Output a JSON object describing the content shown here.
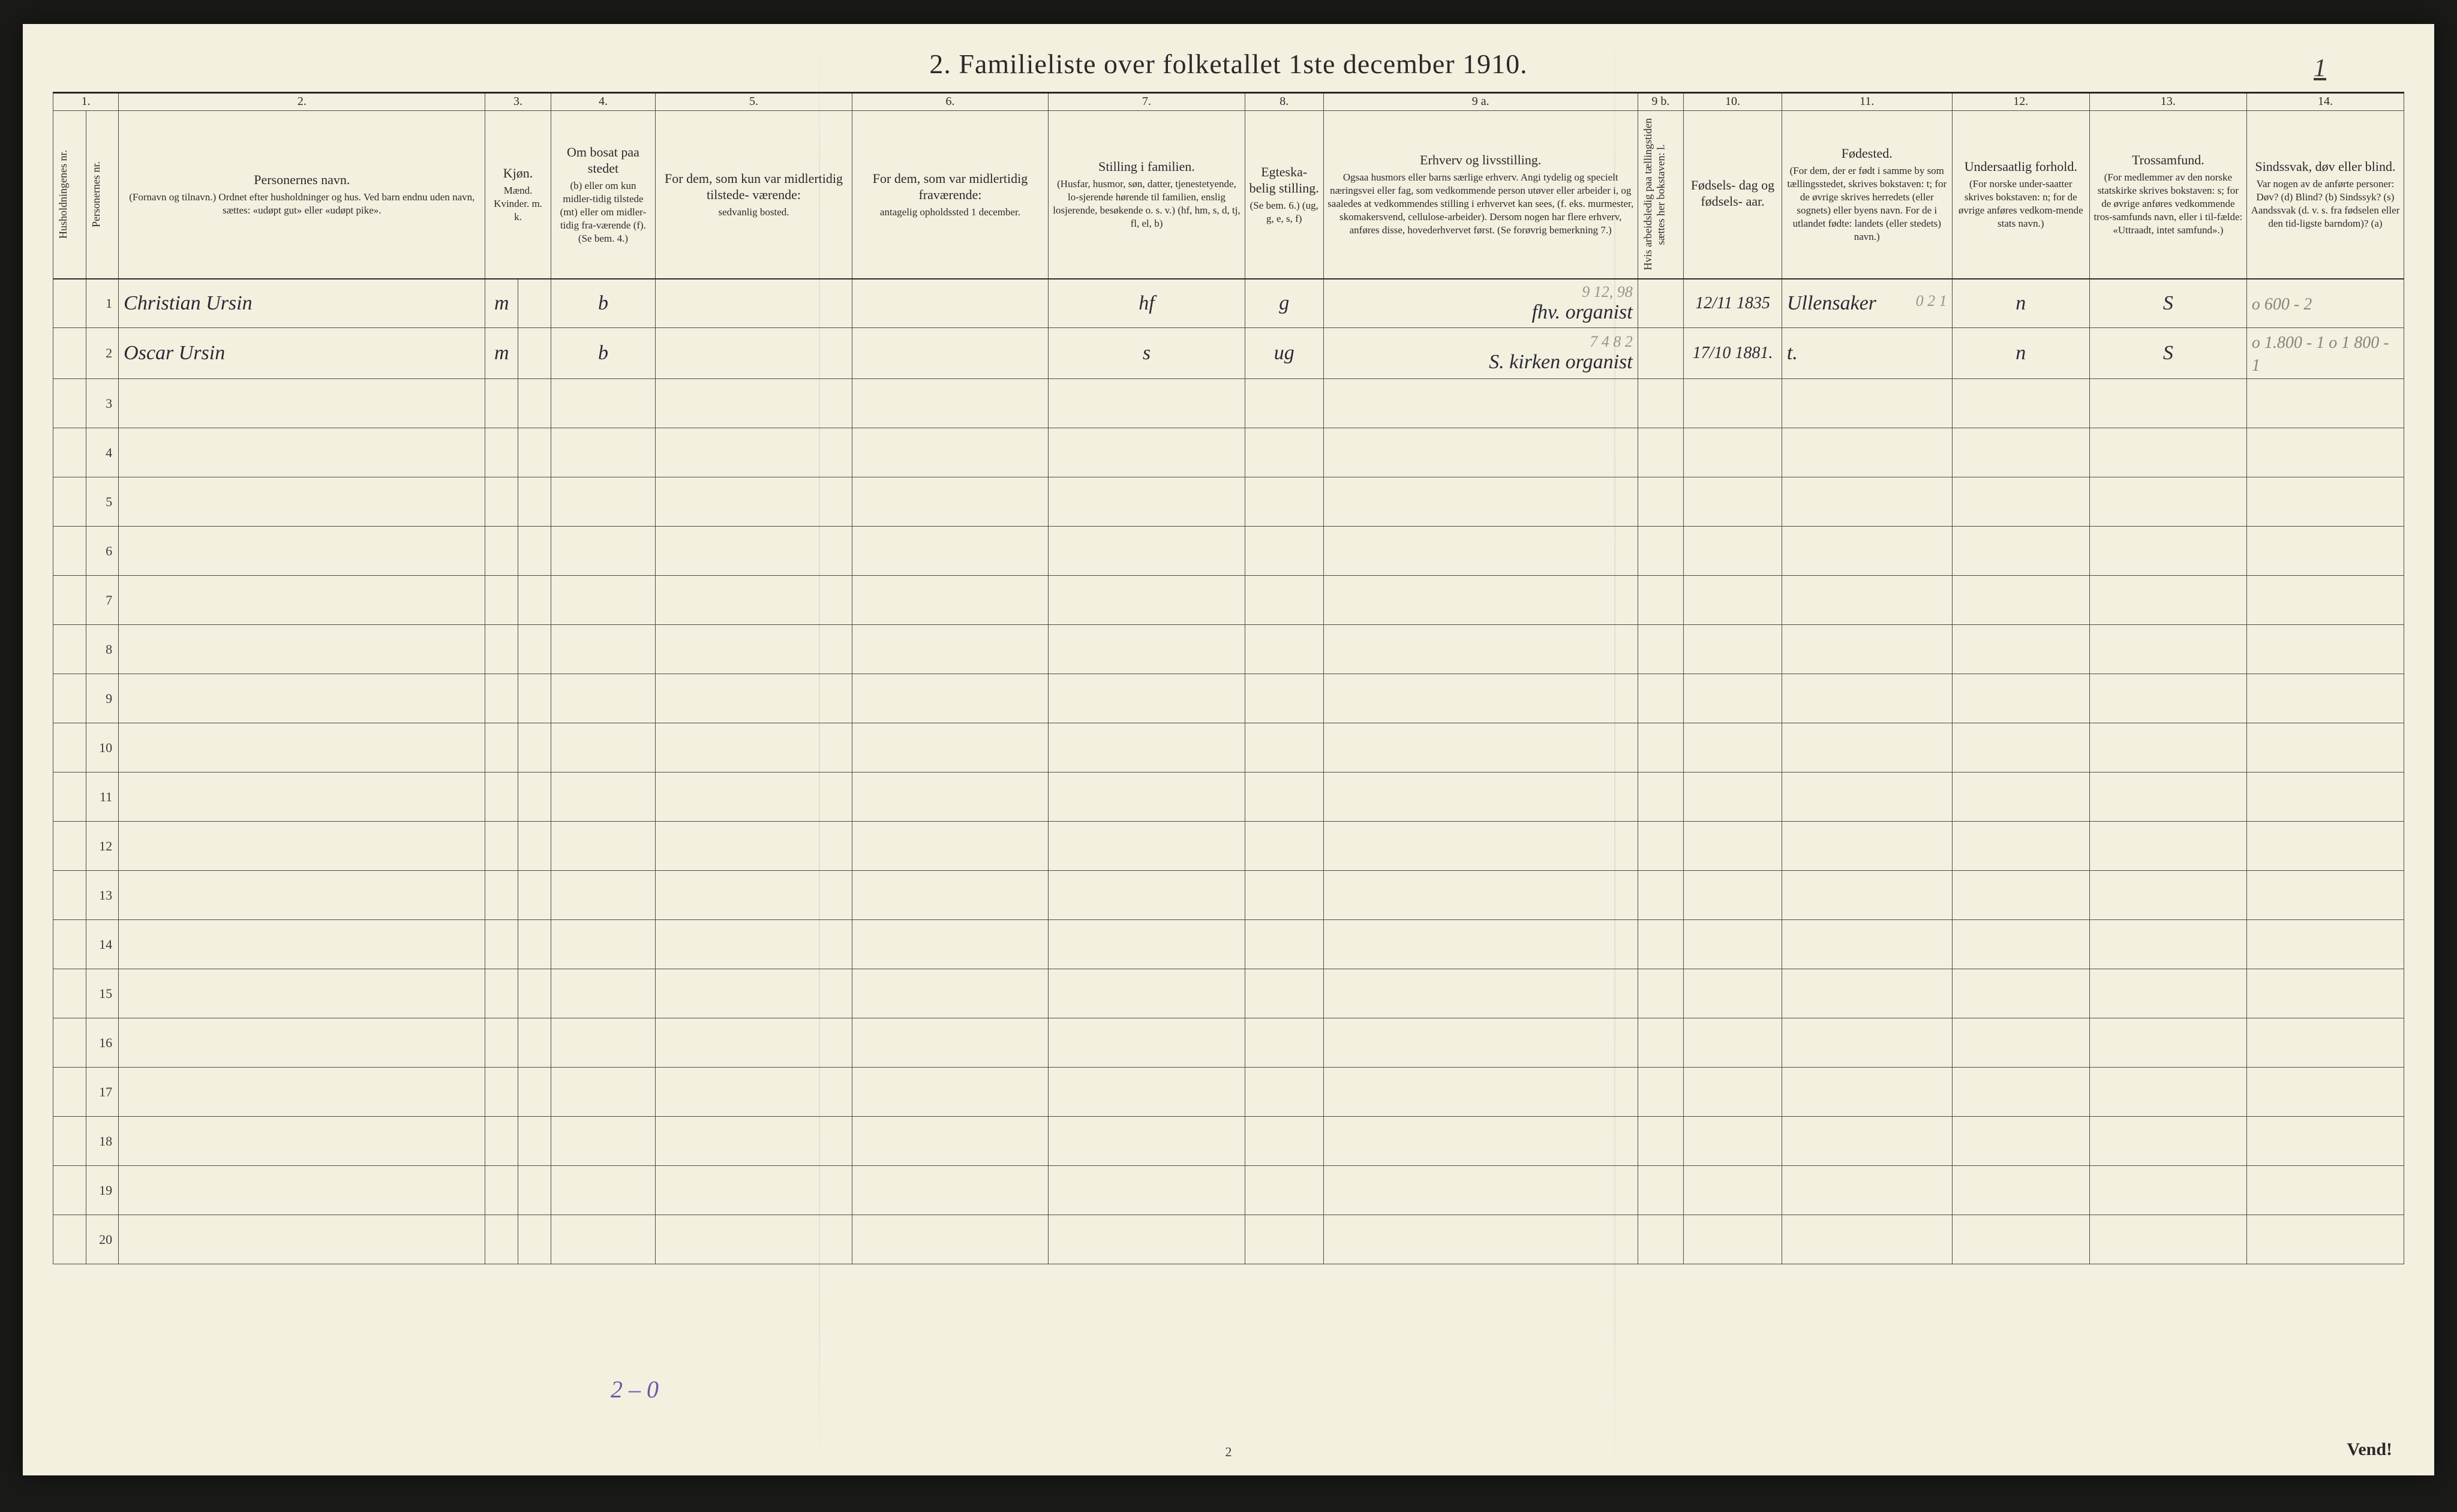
{
  "page": {
    "title": "2.  Familieliste over folketallet 1ste december 1910.",
    "sheet_number": "1",
    "bottom_page": "2",
    "footer": "Vend!",
    "pencil_bottom_left": "2 – 0"
  },
  "col_numbers": [
    "1.",
    "2.",
    "3.",
    "4.",
    "5.",
    "6.",
    "7.",
    "8.",
    "9 a.",
    "9 b.",
    "10.",
    "11.",
    "12.",
    "13.",
    "14."
  ],
  "headers": {
    "c1a_vert": "Husholdningenes nr.",
    "c1b_vert": "Personernes nr.",
    "c2_title": "Personernes navn.",
    "c2_sub": "(Fornavn og tilnavn.)\nOrdnet efter husholdninger og hus.\nVed barn endnu uden navn, sættes: «udøpt gut»\neller «udøpt pike».",
    "c3_title": "Kjøn.",
    "c3_sub": "Mænd.  Kvinder.\nm.   k.",
    "c4_title": "Om bosat paa stedet",
    "c4_sub": "(b) eller om kun midler-tidig tilstede (mt) eller om midler-tidig fra-værende (f).\n(Se bem. 4.)",
    "c5_title": "For dem, som kun var\nmidlertidig tilstede-\nværende:",
    "c5_sub": "sedvanlig bosted.",
    "c6_title": "For dem, som var\nmidlertidig\nfraværende:",
    "c6_sub": "antagelig opholdssted\n1 december.",
    "c7_title": "Stilling i familien.",
    "c7_sub": "(Husfar, husmor, søn, datter, tjenestetyende, lo-sjerende hørende til familien, enslig losjerende, besøkende o. s. v.)\n(hf, hm, s, d, tj, fl, el, b)",
    "c8_title": "Egteska-belig\nstilling.",
    "c8_sub": "(Se bem. 6.)\n(ug, g, e, s, f)",
    "c9a_title": "Erhverv og livsstilling.",
    "c9a_sub": "Ogsaa husmors eller barns særlige erhverv.\nAngi tydelig og specielt næringsvei eller fag, som vedkommende person utøver eller arbeider i, og saaledes at vedkommendes stilling i erhvervet kan sees, (f. eks. murmester, skomakersvend, cellulose-arbeider). Dersom nogen har flere erhverv, anføres disse, hovederhvervet først.\n(Se forøvrig bemerkning 7.)",
    "c9b_vert": "Hvis arbeidsledig paa tællingstiden sættes her bokstaven: l.",
    "c10_title": "Fødsels-\ndag\nog\nfødsels-\naar.",
    "c11_title": "Fødested.",
    "c11_sub": "(For dem, der er født i samme by som tællingsstedet, skrives bokstaven: t; for de øvrige skrives herredets (eller sognets) eller byens navn. For de i utlandet fødte: landets (eller stedets) navn.)",
    "c12_title": "Undersaatlig\nforhold.",
    "c12_sub": "(For norske under-saatter skrives bokstaven: n; for de øvrige anføres vedkom-mende stats navn.)",
    "c13_title": "Trossamfund.",
    "c13_sub": "(For medlemmer av den norske statskirke skrives bokstaven: s; for de øvrige anføres vedkommende tros-samfunds navn, eller i til-fælde: «Uttraadt, intet samfund».)",
    "c14_title": "Sindssvak, døv\neller blind.",
    "c14_sub": "Var nogen av de anførte personer:\nDøv?   (d)\nBlind?  (b)\nSindssyk? (s)\nAandssvak (d. v. s. fra fødselen eller den tid-ligste barndom)? (a)"
  },
  "rows": [
    {
      "n": "1",
      "name": "Christian Ursin",
      "sex": "m",
      "bosat": "b",
      "col5": "",
      "col6": "",
      "stilling": "hf",
      "egt": "g",
      "erhverv": "fhv. organist",
      "erhverv_pencil": "9 12, 98",
      "c9b": "",
      "fodsel": "12/11 1835",
      "fodested": "Ullensaker",
      "fodested_pencil": "0 2 1",
      "under": "n",
      "tros": "S",
      "c14_pencil": "o 600 - 2"
    },
    {
      "n": "2",
      "name": "Oscar Ursin",
      "sex": "m",
      "bosat": "b",
      "col5": "",
      "col6": "",
      "stilling": "s",
      "egt": "ug",
      "erhverv": "S. kirken  organist",
      "erhverv_pencil": "7 4 8 2",
      "c9b": "",
      "fodsel": "17/10 1881.",
      "fodested": "t.",
      "fodested_pencil": "",
      "under": "n",
      "tros": "S",
      "c14_pencil": "o 1.800 - 1\no 1 800 - 1"
    }
  ],
  "empty_row_numbers": [
    "3",
    "4",
    "5",
    "6",
    "7",
    "8",
    "9",
    "10",
    "11",
    "12",
    "13",
    "14",
    "15",
    "16",
    "17",
    "18",
    "19",
    "20"
  ]
}
